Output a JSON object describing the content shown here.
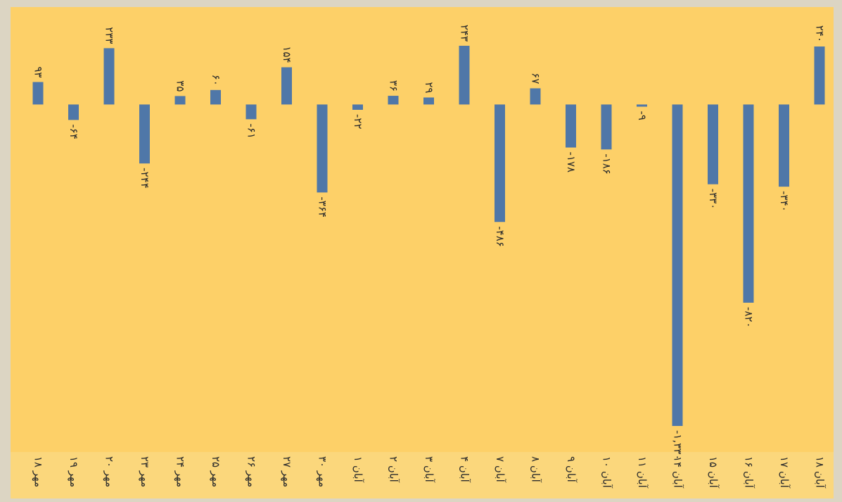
{
  "chart_data": {
    "type": "bar",
    "categories": [
      "۱۸ مهر",
      "۱۹ مهر",
      "۲۰ مهر",
      "۲۳ مهر",
      "۲۴ مهر",
      "۲۵ مهر",
      "۲۶ مهر",
      "۲۷ مهر",
      "۳۰ مهر",
      "۱ آبان",
      "۲ آبان",
      "۳ آبان",
      "۴ آبان",
      "۷ آبان",
      "۸ آبان",
      "۹ آبان",
      "۱۰ آبان",
      "۱۱ آبان",
      "۱۴ آبان",
      "۱۵ آبان",
      "۱۶ آبان",
      "۱۷ آبان",
      "۱۸ آبان"
    ],
    "values": [
      93,
      -64,
      233,
      -244,
      35,
      60,
      -61,
      154,
      -364,
      -22,
      36,
      29,
      243,
      -486,
      67,
      -178,
      -186,
      -9,
      -1330,
      -330,
      -820,
      -340,
      240
    ],
    "value_labels": [
      "۹۳",
      "-۶۴",
      "۲۳۳",
      "-۲۴۴",
      "۳۵",
      "۶۰",
      "-۶۱",
      "۱۵۴",
      "-۳۶۴",
      "-۲۲",
      "۳۶",
      "۲۹",
      "۲۴۳",
      "-۴۸۶",
      "۶۷",
      "-۱۷۸",
      "-۱۸۶",
      "-۹",
      "-۱,۳۳۰",
      "-۳۳۰",
      "-۸۲۰",
      "-۳۴۰",
      "۲۴۰"
    ],
    "color": "#4f77a8"
  }
}
